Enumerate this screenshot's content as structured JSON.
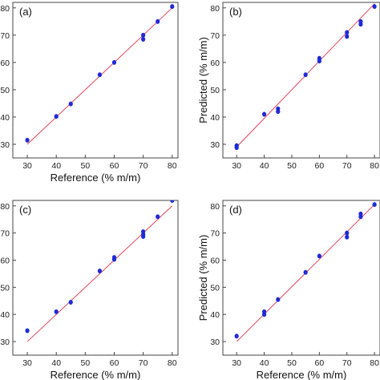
{
  "figure": {
    "panel_count": 4
  },
  "colors": {
    "points": "#1f2bd6",
    "fit_line": "#e0445a",
    "axes": "#444444"
  },
  "chart_data": [
    {
      "panel_label": "(a)",
      "type": "scatter",
      "xlabel": "Reference (% m/m)",
      "ylabel": "",
      "xlim": [
        25,
        82
      ],
      "ylim": [
        25,
        82
      ],
      "x_ticks": [
        30,
        40,
        50,
        60,
        70,
        80
      ],
      "x_tick_labels": [
        "30",
        "40",
        "50",
        "60",
        "70",
        "80"
      ],
      "y_ticks": [
        30,
        40,
        50,
        60,
        70,
        80
      ],
      "y_tick_labels": [
        "30",
        "40",
        "50",
        "60",
        "70",
        "80"
      ],
      "fit_line": {
        "x": [
          30,
          80
        ],
        "y": [
          30,
          80
        ]
      },
      "points": [
        {
          "x": 30,
          "y": 31.5
        },
        {
          "x": 40,
          "y": 40.2
        },
        {
          "x": 45,
          "y": 44.8
        },
        {
          "x": 55,
          "y": 55.5
        },
        {
          "x": 60,
          "y": 60
        },
        {
          "x": 70,
          "y": 70
        },
        {
          "x": 70,
          "y": 68.5
        },
        {
          "x": 75,
          "y": 75
        },
        {
          "x": 80,
          "y": 80.5
        }
      ]
    },
    {
      "panel_label": "(b)",
      "type": "scatter",
      "xlabel": "",
      "ylabel": "Predicted (% m/m)",
      "xlim": [
        25,
        82
      ],
      "ylim": [
        25,
        82
      ],
      "x_ticks": [
        30,
        40,
        50,
        60,
        70,
        80
      ],
      "x_tick_labels": [
        "30",
        "40",
        "50",
        "60",
        "70",
        "80"
      ],
      "y_ticks": [
        30,
        40,
        50,
        60,
        70,
        80
      ],
      "y_tick_labels": [
        "30",
        "40",
        "50",
        "60",
        "70",
        "80"
      ],
      "fit_line": {
        "x": [
          30,
          80
        ],
        "y": [
          29,
          81.5
        ]
      },
      "points": [
        {
          "x": 30,
          "y": 29.5
        },
        {
          "x": 30,
          "y": 28.8
        },
        {
          "x": 40,
          "y": 41
        },
        {
          "x": 45,
          "y": 43
        },
        {
          "x": 45,
          "y": 42
        },
        {
          "x": 55,
          "y": 55.5
        },
        {
          "x": 60,
          "y": 61.5
        },
        {
          "x": 60,
          "y": 60.5
        },
        {
          "x": 70,
          "y": 71
        },
        {
          "x": 70,
          "y": 69.5
        },
        {
          "x": 75,
          "y": 75
        },
        {
          "x": 75,
          "y": 74
        },
        {
          "x": 80,
          "y": 80.5
        }
      ]
    },
    {
      "panel_label": "(c)",
      "type": "scatter",
      "xlabel": "Reference (% m/m)",
      "ylabel": "",
      "xlim": [
        25,
        82
      ],
      "ylim": [
        25,
        82
      ],
      "x_ticks": [
        30,
        40,
        50,
        60,
        70,
        80
      ],
      "x_tick_labels": [
        "30",
        "40",
        "50",
        "60",
        "70",
        "80"
      ],
      "y_ticks": [
        30,
        40,
        50,
        60,
        70,
        80
      ],
      "y_tick_labels": [
        "30",
        "40",
        "50",
        "60",
        "70",
        "80"
      ],
      "fit_line": {
        "x": [
          30,
          80
        ],
        "y": [
          30,
          80
        ]
      },
      "points": [
        {
          "x": 30,
          "y": 34
        },
        {
          "x": 40,
          "y": 41
        },
        {
          "x": 45,
          "y": 44.5
        },
        {
          "x": 55,
          "y": 56
        },
        {
          "x": 60,
          "y": 61
        },
        {
          "x": 60,
          "y": 60.3
        },
        {
          "x": 70,
          "y": 70.5
        },
        {
          "x": 70,
          "y": 69.5
        },
        {
          "x": 70,
          "y": 68.7
        },
        {
          "x": 75,
          "y": 76
        },
        {
          "x": 80,
          "y": 82
        }
      ]
    },
    {
      "panel_label": "(d)",
      "type": "scatter",
      "xlabel": "Reference (% m/m)",
      "ylabel": "Predicted (% m/m)",
      "xlim": [
        25,
        82
      ],
      "ylim": [
        25,
        82
      ],
      "x_ticks": [
        30,
        40,
        50,
        60,
        70,
        80
      ],
      "x_tick_labels": [
        "30",
        "40",
        "50",
        "60",
        "70",
        "80"
      ],
      "y_ticks": [
        30,
        40,
        50,
        60,
        70,
        80
      ],
      "y_tick_labels": [
        "30",
        "40",
        "50",
        "60",
        "70",
        "80"
      ],
      "fit_line": {
        "x": [
          30,
          80
        ],
        "y": [
          30,
          80.5
        ]
      },
      "points": [
        {
          "x": 30,
          "y": 32
        },
        {
          "x": 40,
          "y": 41
        },
        {
          "x": 40,
          "y": 40
        },
        {
          "x": 45,
          "y": 45.5
        },
        {
          "x": 55,
          "y": 55.5
        },
        {
          "x": 60,
          "y": 61.5
        },
        {
          "x": 70,
          "y": 70
        },
        {
          "x": 70,
          "y": 68.5
        },
        {
          "x": 75,
          "y": 77
        },
        {
          "x": 75,
          "y": 76
        },
        {
          "x": 80,
          "y": 80.5
        }
      ]
    }
  ]
}
